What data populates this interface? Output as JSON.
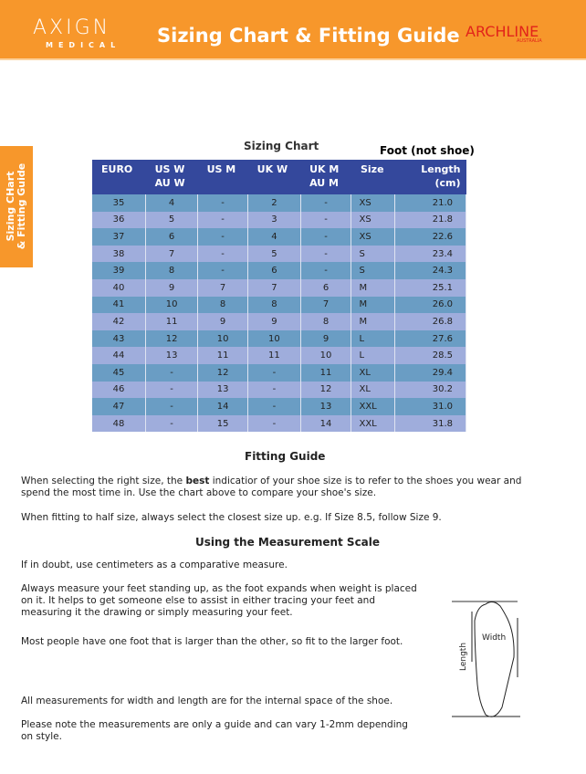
{
  "header": {
    "logo_main": "AXIGN",
    "logo_sub": "MEDICAL",
    "title": "Sizing Chart & Fitting Guide",
    "brand": "ARCHLINE",
    "brand_sub": "AUSTRALIA",
    "accent": "#f7972b"
  },
  "side_tab": {
    "line1": "Sizing CHart",
    "line2": "& Fitting Guide"
  },
  "chart": {
    "title": "Sizing Chart",
    "note": "Foot (not shoe)",
    "columns": [
      [
        "EURO",
        ""
      ],
      [
        "US W",
        "AU W"
      ],
      [
        "US M",
        ""
      ],
      [
        "UK W",
        ""
      ],
      [
        "UK M",
        "AU M"
      ],
      [
        "Size",
        ""
      ],
      [
        "Length",
        "(cm)"
      ]
    ],
    "rows": [
      [
        "35",
        "4",
        "-",
        "2",
        "-",
        "XS",
        "21.0"
      ],
      [
        "36",
        "5",
        "-",
        "3",
        "-",
        "XS",
        "21.8"
      ],
      [
        "37",
        "6",
        "-",
        "4",
        "-",
        "XS",
        "22.6"
      ],
      [
        "38",
        "7",
        "-",
        "5",
        "-",
        "S",
        "23.4"
      ],
      [
        "39",
        "8",
        "-",
        "6",
        "-",
        "S",
        "24.3"
      ],
      [
        "40",
        "9",
        "7",
        "7",
        "6",
        "M",
        "25.1"
      ],
      [
        "41",
        "10",
        "8",
        "8",
        "7",
        "M",
        "26.0"
      ],
      [
        "42",
        "11",
        "9",
        "9",
        "8",
        "M",
        "26.8"
      ],
      [
        "43",
        "12",
        "10",
        "10",
        "9",
        "L",
        "27.6"
      ],
      [
        "44",
        "13",
        "11",
        "11",
        "10",
        "L",
        "28.5"
      ],
      [
        "45",
        "-",
        "12",
        "-",
        "11",
        "XL",
        "29.4"
      ],
      [
        "46",
        "-",
        "13",
        "-",
        "12",
        "XL",
        "30.2"
      ],
      [
        "47",
        "-",
        "14",
        "-",
        "13",
        "XXL",
        "31.0"
      ],
      [
        "48",
        "-",
        "15",
        "-",
        "14",
        "XXL",
        "31.8"
      ]
    ]
  },
  "fitting": {
    "title": "Fitting Guide",
    "p1_a": "When selecting the right size, the ",
    "p1_b": "best",
    "p1_c": " indicatior of your shoe size is to refer to the shoes you wear and spend the most time in. Use the chart above to compare your shoe's size.",
    "p2": "When fitting to half size, always select the closest size up. e.g. If Size 8.5, follow Size 9."
  },
  "measure": {
    "title": "Using the Measurement Scale",
    "p1": "If in doubt, use centimeters as a comparative measure.",
    "p2": "Always measure your feet standing up, as the foot expands when weight is placed on it. It helps to get someone else to assist in either tracing your feet and measuring it the drawing or simply measuring your feet.",
    "p3": "Most people have one foot that is larger than the other, so fit to the larger foot.",
    "p4": "All measurements for width and length are for the internal space of the shoe.",
    "p5": "Please note the measurements are only a guide and can vary 1-2mm depending on style.",
    "diagram_width": "Width",
    "diagram_length": "Length"
  }
}
